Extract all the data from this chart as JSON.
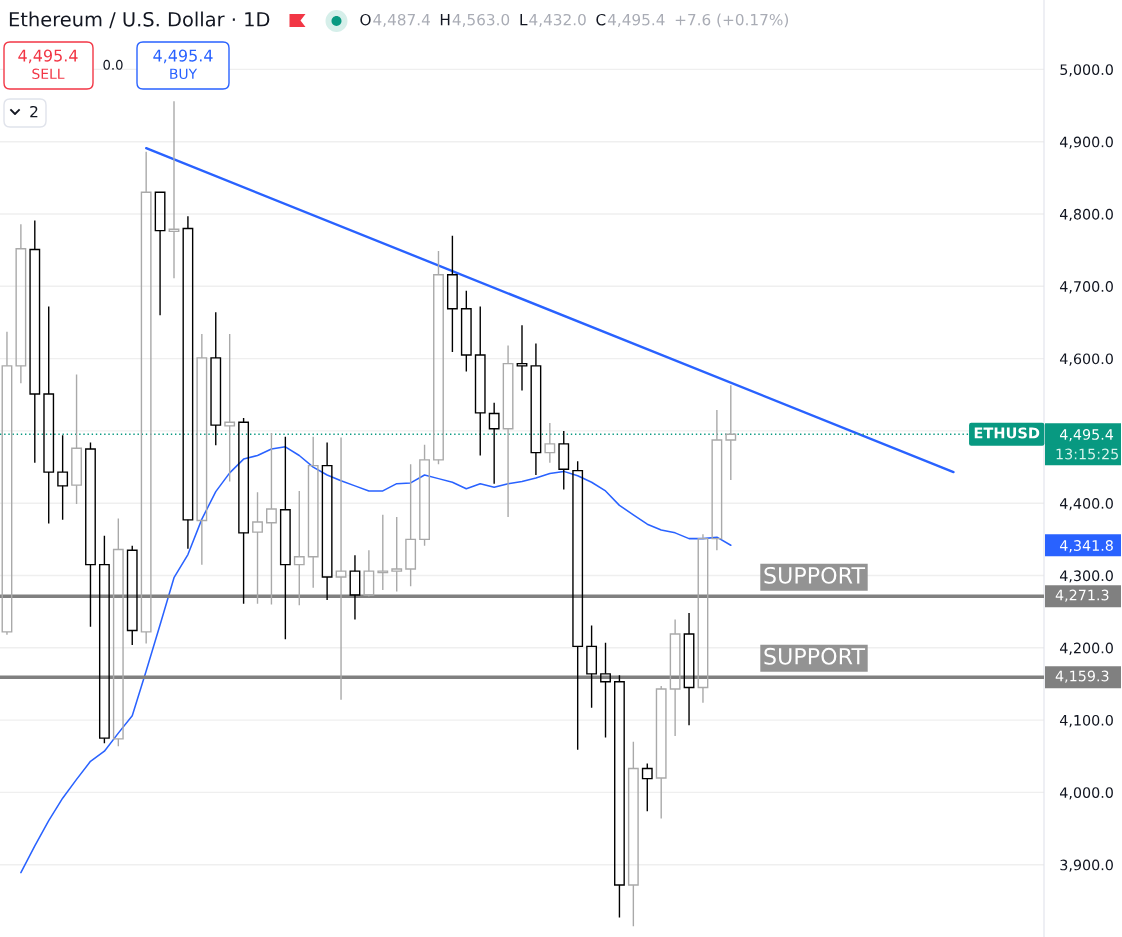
{
  "chart_data": {
    "type": "candlestick",
    "title": "Ethereum / U.S. Dollar · 1D",
    "categories": [
      null,
      null,
      null,
      null,
      null,
      null,
      null,
      null,
      null,
      null,
      null,
      null,
      null,
      null,
      null,
      null,
      null,
      null,
      null,
      null,
      null,
      null,
      null,
      null,
      null,
      null,
      null,
      null,
      null,
      null,
      null,
      null,
      null,
      null,
      null,
      null,
      null,
      null,
      null,
      null,
      null,
      null,
      null,
      null,
      null,
      null,
      null,
      null,
      null,
      null,
      null,
      null,
      null,
      null,
      null,
      null,
      null,
      null,
      null,
      null,
      null,
      null,
      null,
      null,
      null,
      null,
      null,
      null,
      null,
      null,
      null,
      null,
      null,
      null,
      null
    ],
    "ohlc": [
      [
        4222,
        4637,
        4218,
        4590
      ],
      [
        4590,
        4786,
        4566,
        4752
      ],
      [
        4751,
        4791,
        4456,
        4551
      ],
      [
        4551,
        4672,
        4372,
        4443
      ],
      [
        4443,
        4494,
        4377,
        4424
      ],
      [
        4425,
        4578,
        4399,
        4476
      ],
      [
        4475,
        4484,
        4229,
        4315
      ],
      [
        4315,
        4355,
        4068,
        4075
      ],
      [
        4074,
        4379,
        4064,
        4336
      ],
      [
        4335,
        4341,
        4204,
        4224
      ],
      [
        4222,
        4886,
        4206,
        4830
      ],
      [
        4830,
        4830,
        4660,
        4777
      ],
      [
        4776,
        4956,
        4711,
        4779
      ],
      [
        4780,
        4797,
        4337,
        4377
      ],
      [
        4376,
        4634,
        4315,
        4601
      ],
      [
        4601,
        4664,
        4480,
        4508
      ],
      [
        4507,
        4634,
        4430,
        4512
      ],
      [
        4512,
        4518,
        4261,
        4359
      ],
      [
        4360,
        4415,
        4261,
        4374
      ],
      [
        4373,
        4497,
        4260,
        4392
      ],
      [
        4391,
        4492,
        4212,
        4315
      ],
      [
        4315,
        4417,
        4259,
        4326
      ],
      [
        4326,
        4492,
        4283,
        4452
      ],
      [
        4452,
        4484,
        4266,
        4298
      ],
      [
        4298,
        4491,
        4128,
        4306
      ],
      [
        4306,
        4328,
        4239,
        4273
      ],
      [
        4273,
        4335,
        4271,
        4306
      ],
      [
        4304,
        4384,
        4280,
        4306
      ],
      [
        4306,
        4381,
        4278,
        4309
      ],
      [
        4309,
        4454,
        4285,
        4350
      ],
      [
        4350,
        4481,
        4341,
        4460
      ],
      [
        4460,
        4749,
        4454,
        4716
      ],
      [
        4716,
        4770,
        4609,
        4669
      ],
      [
        4669,
        4694,
        4582,
        4605
      ],
      [
        4605,
        4672,
        4466,
        4525
      ],
      [
        4524,
        4539,
        4427,
        4503
      ],
      [
        4503,
        4618,
        4381,
        4593
      ],
      [
        4593,
        4646,
        4556,
        4590
      ],
      [
        4590,
        4621,
        4439,
        4470
      ],
      [
        4470,
        4511,
        4456,
        4482
      ],
      [
        4482,
        4500,
        4419,
        4447
      ],
      [
        4445,
        4458,
        4059,
        4202
      ],
      [
        4202,
        4231,
        4117,
        4164
      ],
      [
        4164,
        4207,
        4076,
        4153
      ],
      [
        4153,
        4162,
        3827,
        3872
      ],
      [
        3872,
        4070,
        3815,
        4033
      ],
      [
        4033,
        4040,
        3974,
        4019
      ],
      [
        4020,
        4147,
        3964,
        4143
      ],
      [
        4143,
        4239,
        4078,
        4219
      ],
      [
        4219,
        4248,
        4093,
        4145
      ],
      [
        4145,
        4357,
        4124,
        4351
      ],
      [
        4351,
        4529,
        4335,
        4487.4
      ],
      [
        4487.4,
        4563.0,
        4432.0,
        4495.4
      ],
      null,
      null,
      null,
      null,
      null,
      null,
      null,
      null,
      null,
      null,
      null,
      null,
      null,
      null,
      null,
      null,
      null,
      null,
      null,
      null,
      null,
      null
    ],
    "colors": [
      "#a9a9a9",
      "#a9a9a9",
      "#000000",
      "#000000",
      "#000000",
      "#a9a9a9",
      "#000000",
      "#000000",
      "#a9a9a9",
      "#000000",
      "#a9a9a9",
      "#000000",
      "#a9a9a9",
      "#000000",
      "#a9a9a9",
      "#000000",
      "#a9a9a9",
      "#000000",
      "#a9a9a9",
      "#a9a9a9",
      "#000000",
      "#a9a9a9",
      "#a9a9a9",
      "#000000",
      "#a9a9a9",
      "#000000",
      "#a9a9a9",
      "#a9a9a9",
      "#a9a9a9",
      "#a9a9a9",
      "#a9a9a9",
      "#a9a9a9",
      "#000000",
      "#000000",
      "#000000",
      "#000000",
      "#a9a9a9",
      "#000000",
      "#000000",
      "#a9a9a9",
      "#000000",
      "#000000",
      "#000000",
      "#000000",
      "#000000",
      "#a9a9a9",
      "#000000",
      "#a9a9a9",
      "#a9a9a9",
      "#000000",
      "#a9a9a9",
      "#a9a9a9",
      "#a9a9a9",
      null,
      null,
      null,
      null,
      null,
      null,
      null,
      null,
      null,
      null,
      null,
      null,
      null,
      null,
      null,
      null,
      null,
      null,
      null,
      null,
      null,
      null
    ],
    "series": [
      {
        "type": "line",
        "color": "#2962ff",
        "values": [
          null,
          3889,
          3926,
          3961,
          3992,
          4018,
          4043,
          4057,
          4082,
          4106,
          4168,
          4232,
          4297,
          4329,
          4378,
          4416,
          4442,
          4461,
          4466,
          4475,
          4478,
          4466,
          4450,
          4439,
          4431,
          4424,
          4417,
          4417,
          4427,
          4428,
          4439,
          4434,
          4429,
          4420,
          4427,
          4422,
          4427,
          4430,
          4435,
          4441,
          4444,
          4438,
          4429,
          4417,
          4397,
          4384,
          4371,
          4363,
          4359,
          4351,
          4351,
          4353,
          4341.8,
          null,
          null,
          null,
          null,
          null,
          null,
          null,
          null,
          null,
          null,
          null,
          null,
          null,
          null,
          null,
          null,
          null,
          null,
          null,
          null,
          null,
          null
        ]
      },
      {
        "type": "line",
        "color": "#2962ff",
        "values": [
          null,
          null,
          null,
          null,
          null,
          null,
          null,
          null,
          null,
          null,
          4891,
          null,
          null,
          null,
          null,
          null,
          null,
          null,
          null,
          null,
          null,
          null,
          null,
          null,
          null,
          null,
          null,
          null,
          null,
          null,
          null,
          null,
          null,
          null,
          null,
          null,
          null,
          null,
          null,
          null,
          null,
          null,
          null,
          null,
          null,
          null,
          null,
          null,
          null,
          null,
          null,
          null,
          null,
          null,
          null,
          null,
          null,
          null,
          null,
          null,
          null,
          null,
          null,
          null,
          null,
          null,
          null,
          null,
          4443,
          null,
          null,
          null,
          null,
          null,
          null
        ]
      }
    ],
    "ylim": [
      3800,
      5096
    ],
    "yticks": [
      {
        "value": 3900,
        "label": "3,900.0"
      },
      {
        "value": 4000,
        "label": "4,000.0"
      },
      {
        "value": 4100,
        "label": "4,100.0"
      },
      {
        "value": 4200,
        "label": "4,200.0"
      },
      {
        "value": 4300,
        "label": "4,300.0"
      },
      {
        "value": 4341.8,
        "label": "4,341.8"
      },
      {
        "value": 4400,
        "label": "4,400.0"
      },
      {
        "value": 4495.4,
        "label": "4,495.4"
      },
      {
        "value": 4500,
        "label": null
      },
      {
        "value": 4600,
        "label": "4,600.0"
      },
      {
        "value": 4700,
        "label": "4,700.0"
      },
      {
        "value": 4800,
        "label": "4,800.0"
      },
      {
        "value": 4900,
        "label": "4,900.0"
      },
      {
        "value": 5000,
        "label": "5,000.0"
      }
    ],
    "ref_lines": [
      {
        "axis": "y",
        "value": 4495.4,
        "label": "ETHUSD",
        "color": "#089981",
        "line_style": "dotted"
      },
      {
        "axis": "y",
        "value": 4271.3,
        "label": "SUPPORT",
        "color": "#808080",
        "line_style": "solid"
      },
      {
        "axis": "y",
        "value": 4159.3,
        "label": "SUPPORT",
        "color": "#808080",
        "line_style": "solid"
      }
    ],
    "annotations": [
      "O4,487.4",
      "H4,563.0",
      "L4,432.0",
      "C4,495.4",
      "+7.6 (+0.17%)",
      "4,495.4",
      "SELL",
      "0.0",
      "4,495.4",
      "BUY",
      "2",
      "13:15:25",
      "4,271.3",
      "4,159.3"
    ],
    "grid": "y",
    "tick_labels": "y"
  }
}
